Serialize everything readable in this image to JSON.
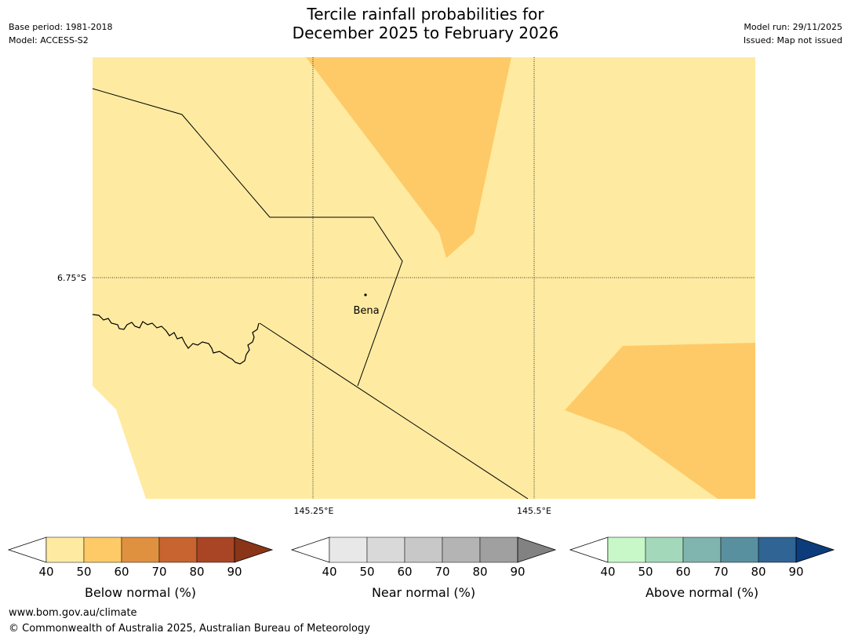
{
  "title_line1": "Tercile rainfall probabilities for",
  "title_line2": "December 2025 to February 2026",
  "meta": {
    "base_period": "Base period: 1981-2018",
    "model": "Model: ACCESS-S2",
    "model_run": "Model run: 29/11/2025",
    "issued": "Issued: Map not issued"
  },
  "map": {
    "latitude_label": "6.75°S",
    "longitude_labels": [
      "145.25°E",
      "145.5°E"
    ],
    "town": "Bena",
    "background_class": "Below normal 40-50%",
    "highlight_class": "Below normal 50-60%"
  },
  "colorbars": [
    {
      "title": "Below normal (%)",
      "ticks": [
        "40",
        "50",
        "60",
        "70",
        "80",
        "90"
      ],
      "colors": [
        "#ffffff",
        "#feeba1",
        "#feca67",
        "#e0913f",
        "#c8642f",
        "#a94525",
        "#8a3518"
      ]
    },
    {
      "title": "Near normal (%)",
      "ticks": [
        "40",
        "50",
        "60",
        "70",
        "80",
        "90"
      ],
      "colors": [
        "#ffffff",
        "#e8e8e8",
        "#d9d9d9",
        "#c8c8c8",
        "#b4b4b4",
        "#a0a0a0",
        "#828282"
      ]
    },
    {
      "title": "Above normal (%)",
      "ticks": [
        "40",
        "50",
        "60",
        "70",
        "80",
        "90"
      ],
      "colors": [
        "#ffffff",
        "#c8f8c8",
        "#a4d8bb",
        "#80b4ae",
        "#5890a0",
        "#2f6494",
        "#0c3c7c"
      ]
    }
  ],
  "footer": {
    "url": "www.bom.gov.au/climate",
    "copyright": "© Commonwealth of Australia 2025, Australian Bureau of Meteorology"
  },
  "colors": {
    "map_light": "#feeba1",
    "map_dark": "#feca67",
    "outline": "#000000"
  }
}
